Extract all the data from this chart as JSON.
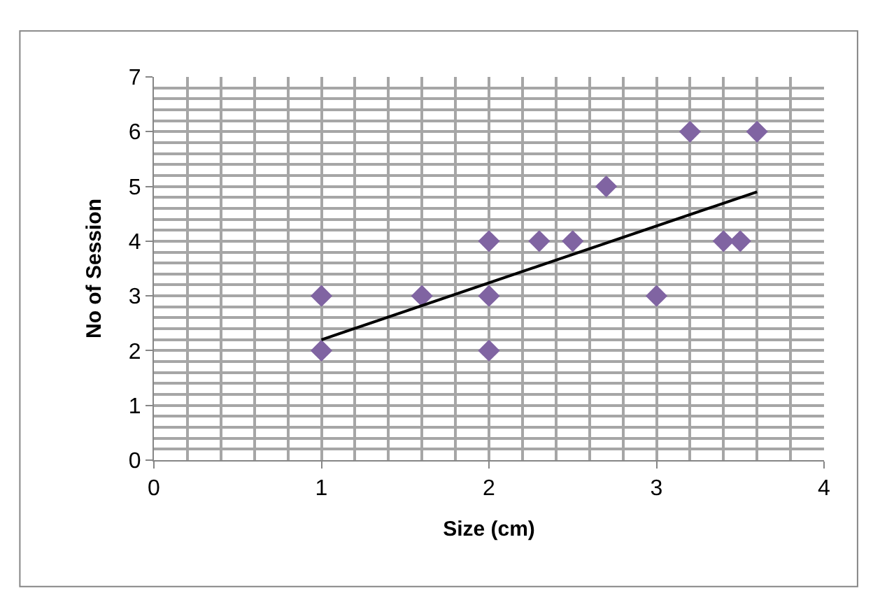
{
  "chart_data": {
    "type": "scatter",
    "xlabel": "Size (cm)",
    "ylabel": "No of Session",
    "x": [
      1,
      1,
      1.6,
      2,
      2,
      2,
      2.3,
      2.5,
      2.7,
      3,
      3.2,
      3.4,
      3.5,
      3.6
    ],
    "values": [
      3,
      2,
      3,
      4,
      3,
      2,
      4,
      4,
      5,
      3,
      6,
      4,
      4,
      6
    ],
    "color": "#8064a2",
    "marker": "diamond",
    "series": [
      {
        "type": "line",
        "x": [
          1,
          3.6
        ],
        "values": [
          2.2,
          4.9
        ],
        "color": "#000000",
        "marker": "none"
      }
    ],
    "xlim": [
      0,
      4
    ],
    "xticks": [
      0,
      1,
      2,
      3,
      4
    ],
    "ylim": [
      0,
      7
    ],
    "yticks": [
      0,
      1,
      2,
      3,
      4,
      5,
      6,
      7
    ],
    "grid": true
  }
}
